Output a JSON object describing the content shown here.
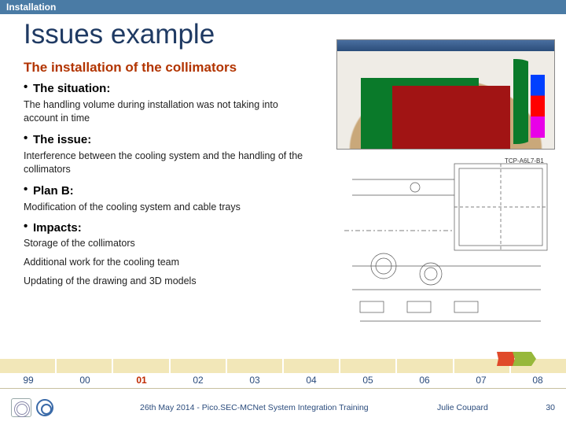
{
  "topbar": "Installation",
  "title": "Issues example",
  "subtitle": "The installation of the collimators",
  "sections": {
    "situation": {
      "label": "The situation:",
      "text": "The handling volume during installation was not taking into account in time"
    },
    "issue": {
      "label": "The issue:",
      "text": "Interference between the cooling system and the handling of the collimators"
    },
    "planb": {
      "label": "Plan B:",
      "text": "Modification of the cooling system and cable trays"
    },
    "impacts": {
      "label": "Impacts:",
      "lines": [
        "Storage of the collimators",
        "Additional work for the cooling team",
        "Updating of the drawing and 3D models"
      ]
    }
  },
  "figure_label": "TCP-A6L7-B1",
  "timeline": {
    "years": [
      "99",
      "00",
      "01",
      "02",
      "03",
      "04",
      "05",
      "06",
      "07",
      "08"
    ],
    "highlight_index": 2,
    "seg_color": "#f2e7b8",
    "marker_colors": {
      "red": "#e04a2a",
      "green": "#97b83b"
    }
  },
  "footer": {
    "center": "26th May 2014 - Pico.SEC-MCNet System Integration Training",
    "author": "Julie Coupard",
    "page": "30"
  },
  "colors": {
    "topbar_bg": "#4a7ba5",
    "title_color": "#1f3a63",
    "accent": "#b23400"
  }
}
